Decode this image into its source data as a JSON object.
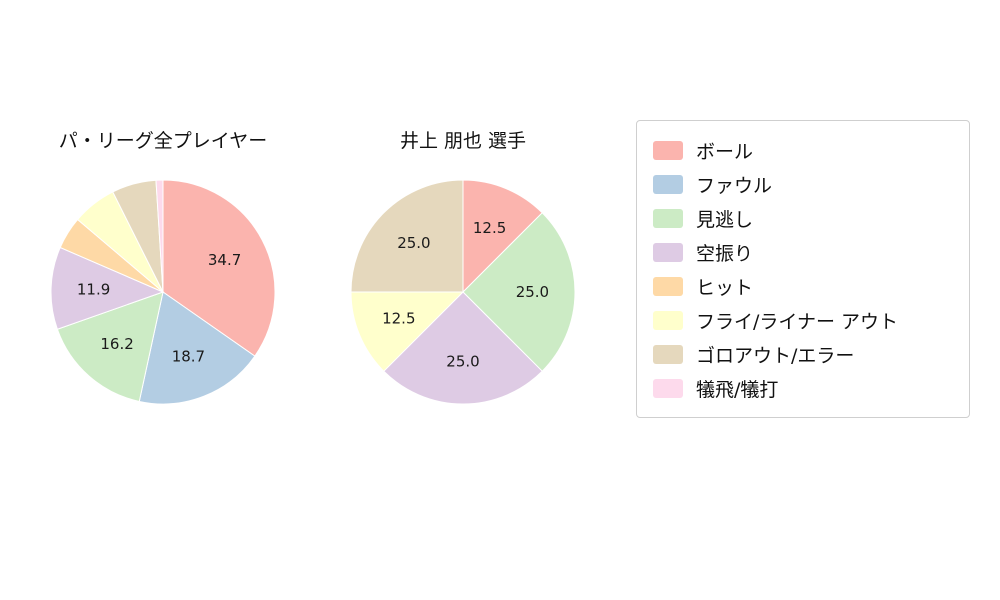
{
  "chart_data": [
    {
      "type": "pie",
      "title": "パ・リーグ全プレイヤー",
      "start_angle": "top",
      "direction": "clockwise",
      "slices": [
        {
          "label": "ボール",
          "value": 34.7,
          "text": "34.7",
          "color": "#fbb4ae"
        },
        {
          "label": "ファウル",
          "value": 18.7,
          "text": "18.7",
          "color": "#b3cde3"
        },
        {
          "label": "見逃し",
          "value": 16.2,
          "text": "16.2",
          "color": "#ccebc5"
        },
        {
          "label": "空振り",
          "value": 11.9,
          "text": "11.9",
          "color": "#decbe4"
        },
        {
          "label": "ヒット",
          "value": 4.7,
          "text": "",
          "color": "#fed9a6"
        },
        {
          "label": "フライ/ライナー アウト",
          "value": 6.4,
          "text": "",
          "color": "#ffffcc"
        },
        {
          "label": "ゴロアウト/エラー",
          "value": 6.4,
          "text": "",
          "color": "#e5d8bd"
        },
        {
          "label": "犠飛/犠打",
          "value": 1.0,
          "text": "",
          "color": "#fddaec"
        }
      ]
    },
    {
      "type": "pie",
      "title": "井上 朋也  選手",
      "start_angle": "top",
      "direction": "clockwise",
      "slices": [
        {
          "label": "ボール",
          "value": 12.5,
          "text": "12.5",
          "color": "#fbb4ae"
        },
        {
          "label": "見逃し",
          "value": 25.0,
          "text": "25.0",
          "color": "#ccebc5"
        },
        {
          "label": "空振り",
          "value": 25.0,
          "text": "25.0",
          "color": "#decbe4"
        },
        {
          "label": "フライ/ライナー アウト",
          "value": 12.5,
          "text": "12.5",
          "color": "#ffffcc"
        },
        {
          "label": "ゴロアウト/エラー",
          "value": 25.0,
          "text": "25.0",
          "color": "#e5d8bd"
        }
      ]
    }
  ],
  "legend": {
    "items": [
      {
        "label": "ボール",
        "color": "#fbb4ae"
      },
      {
        "label": "ファウル",
        "color": "#b3cde3"
      },
      {
        "label": "見逃し",
        "color": "#ccebc5"
      },
      {
        "label": "空振り",
        "color": "#decbe4"
      },
      {
        "label": "ヒット",
        "color": "#fed9a6"
      },
      {
        "label": "フライ/ライナー アウト",
        "color": "#ffffcc"
      },
      {
        "label": "ゴロアウト/エラー",
        "color": "#e5d8bd"
      },
      {
        "label": "犠飛/犠打",
        "color": "#fddaec"
      }
    ]
  }
}
